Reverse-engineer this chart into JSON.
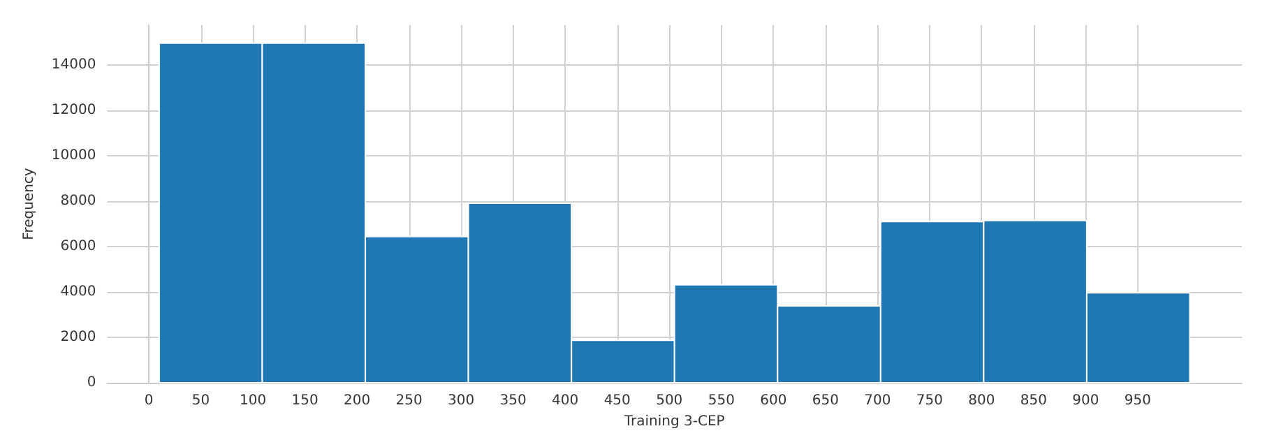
{
  "chart_data": {
    "type": "histogram",
    "xlabel": "Training 3-CEP",
    "ylabel": "Frequency",
    "bins": [
      10,
      109,
      208,
      307,
      406,
      505,
      604,
      703,
      802,
      901,
      1000
    ],
    "values": [
      14950,
      14950,
      6430,
      7900,
      1870,
      4310,
      3380,
      7090,
      7140,
      3960
    ],
    "color": "#1f77b4",
    "xlim": [
      -40,
      1050
    ],
    "xticks": [
      0,
      50,
      100,
      150,
      200,
      250,
      300,
      350,
      400,
      450,
      500,
      550,
      600,
      650,
      700,
      750,
      800,
      850,
      900,
      950
    ],
    "ylim": [
      0,
      15740
    ],
    "yticks": [
      0,
      2000,
      4000,
      6000,
      8000,
      10000,
      12000,
      14000
    ],
    "grid": true
  }
}
